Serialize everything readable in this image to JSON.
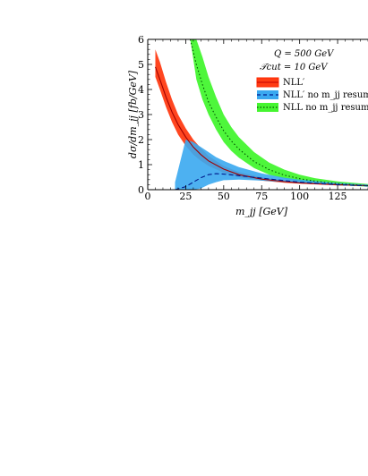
{
  "chart_data": {
    "type": "line",
    "xlabel": "m_jj [GeV]",
    "ylabel": "dσ/dm_jj [fb/GeV]",
    "xlim": [
      0,
      145
    ],
    "ylim": [
      0,
      6
    ],
    "x_ticks": [
      "0",
      "25",
      "50",
      "75",
      "100",
      "125"
    ],
    "y_ticks": [
      "0",
      "1",
      "2",
      "3",
      "4",
      "5",
      "6"
    ],
    "annotations": [
      "Q = 500 GeV",
      "𝒯cut = 10 GeV"
    ],
    "legend_position": "top-right",
    "series": [
      {
        "name": "NLL′",
        "color": "#ff2a00",
        "band_color": "#ff3c14",
        "line_style": "solid",
        "x": [
          5,
          8,
          12,
          16,
          20,
          25,
          30,
          35,
          40,
          50,
          60,
          75,
          90,
          100,
          125,
          145
        ],
        "y": [
          4.9,
          4.4,
          3.7,
          3.1,
          2.6,
          2.1,
          1.7,
          1.4,
          1.15,
          0.82,
          0.6,
          0.42,
          0.32,
          0.27,
          0.2,
          0.16
        ],
        "lower": [
          4.5,
          4.0,
          3.3,
          2.7,
          2.2,
          1.75,
          1.4,
          1.15,
          0.95,
          0.68,
          0.5,
          0.36,
          0.28,
          0.24,
          0.17,
          0.14
        ],
        "upper": [
          5.6,
          5.1,
          4.3,
          3.6,
          3.0,
          2.45,
          2.0,
          1.65,
          1.35,
          0.95,
          0.7,
          0.49,
          0.37,
          0.31,
          0.23,
          0.19
        ]
      },
      {
        "name": "NLL′ no m_jj resum",
        "color": "#001a8c",
        "band_color": "#3aa8f0",
        "line_style": "dashed",
        "x": [
          18,
          25,
          30,
          35,
          40,
          45,
          50,
          60,
          75,
          90,
          100,
          125,
          145
        ],
        "y": [
          0.0,
          0.12,
          0.3,
          0.48,
          0.6,
          0.64,
          0.62,
          0.56,
          0.46,
          0.36,
          0.3,
          0.2,
          0.15
        ],
        "lower": [
          0.0,
          0.0,
          0.0,
          0.05,
          0.2,
          0.3,
          0.38,
          0.4,
          0.36,
          0.3,
          0.26,
          0.18,
          0.13
        ],
        "upper": [
          0.3,
          2.0,
          1.9,
          1.7,
          1.5,
          1.3,
          1.15,
          0.9,
          0.65,
          0.48,
          0.4,
          0.27,
          0.2
        ]
      },
      {
        "name": "NLL no m_jj resum",
        "color": "#005000",
        "band_color": "#45f530",
        "line_style": "dotted",
        "x": [
          28,
          32,
          36,
          40,
          45,
          50,
          55,
          60,
          70,
          80,
          90,
          100,
          110,
          125,
          145
        ],
        "y": [
          6.0,
          5.0,
          4.2,
          3.5,
          2.9,
          2.35,
          1.95,
          1.62,
          1.12,
          0.8,
          0.58,
          0.44,
          0.34,
          0.24,
          0.16
        ],
        "lower": [
          6.0,
          4.4,
          3.6,
          3.0,
          2.4,
          1.9,
          1.55,
          1.28,
          0.86,
          0.6,
          0.44,
          0.34,
          0.26,
          0.18,
          0.12
        ],
        "upper": [
          6.0,
          6.0,
          5.3,
          4.5,
          3.7,
          3.0,
          2.5,
          2.1,
          1.5,
          1.08,
          0.8,
          0.6,
          0.46,
          0.33,
          0.22
        ]
      }
    ]
  }
}
